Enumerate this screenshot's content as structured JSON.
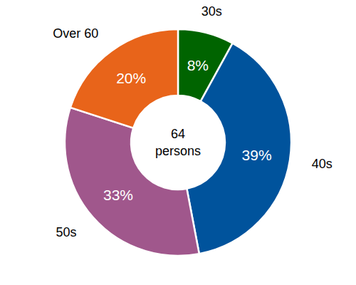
{
  "chart_data": {
    "type": "donut",
    "categories": [
      "30s",
      "40s",
      "50s",
      "Over 60"
    ],
    "values": [
      8,
      39,
      33,
      20
    ],
    "value_labels": [
      "8%",
      "39%",
      "33%",
      "20%"
    ],
    "colors": [
      "#006400",
      "#00539c",
      "#a0578c",
      "#e8641a"
    ],
    "data_labels": true,
    "total": 64,
    "center_text": "persons"
  }
}
